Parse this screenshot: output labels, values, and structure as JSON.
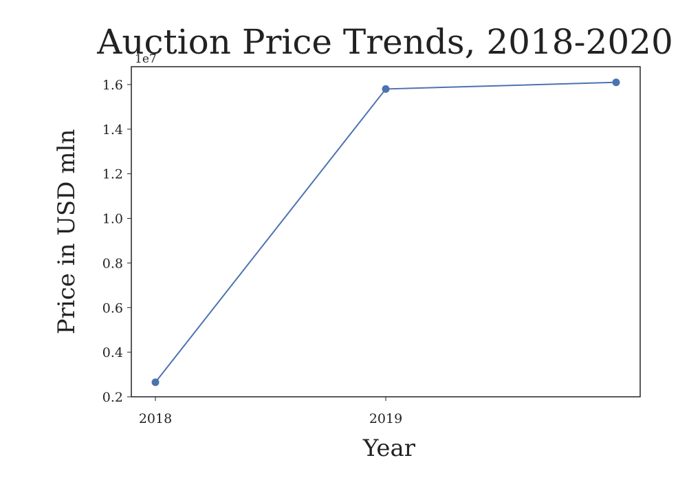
{
  "chart_data": {
    "type": "line",
    "title": "Auction Price Trends, 2018-2020",
    "xlabel": "Year",
    "ylabel": "Price in USD mln",
    "y_offset_label": "1e7",
    "categories": [
      "2018",
      "2019",
      "2020"
    ],
    "x_tick_labels": [
      "2018",
      "2019"
    ],
    "y_ticks": [
      0.2,
      0.4,
      0.6,
      0.8,
      1.0,
      1.2,
      1.4,
      1.6
    ],
    "y_tick_labels": [
      "0.2",
      "0.4",
      "0.6",
      "0.8",
      "1.0",
      "1.2",
      "1.4",
      "1.6"
    ],
    "ylim": [
      0.2,
      1.68
    ],
    "series": [
      {
        "values": [
          0.265,
          1.58,
          1.61
        ],
        "color": "#4c72b0"
      }
    ],
    "grid": false,
    "legend": "none"
  }
}
